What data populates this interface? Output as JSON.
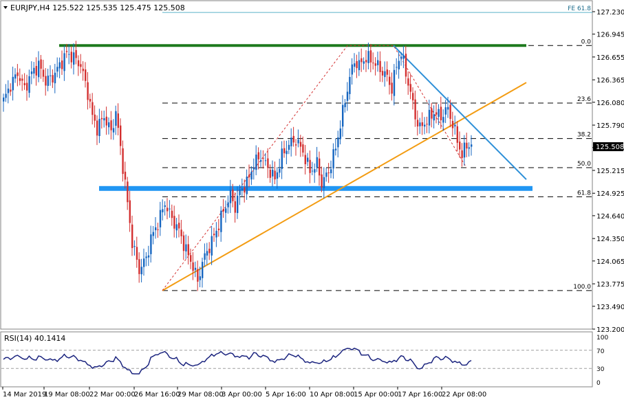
{
  "chart_data": [
    {
      "type": "candlestick",
      "title": "EURJPY,H4  125.522 125.535 125.475 125.508",
      "symbol": "EURJPY",
      "timeframe": "H4",
      "ohlc_last": {
        "open": 125.522,
        "high": 125.535,
        "low": 125.475,
        "close": 125.508
      },
      "current_price_label": "125.508",
      "y_ticks": [
        "127.230",
        "126.945",
        "126.655",
        "126.365",
        "126.080",
        "125.790",
        "125.505",
        "125.215",
        "124.925",
        "124.640",
        "124.350",
        "124.065",
        "123.775",
        "123.490",
        "123.200"
      ],
      "ylim": [
        123.2,
        127.33
      ],
      "x_tick_labels": [
        "14 Mar 2019",
        "19 Mar 08:00",
        "22 Mar 00:00",
        "26 Mar 16:00",
        "29 Mar 08:00",
        "3 Apr 00:00",
        "5 Apr 16:00",
        "10 Apr 08:00",
        "15 Apr 00:00",
        "17 Apr 16:00",
        "22 Apr 08:00"
      ],
      "fibonacci_levels": [
        {
          "label": "0.0",
          "price": 126.8
        },
        {
          "label": "23.6",
          "price": 126.07
        },
        {
          "label": "38.2",
          "price": 125.62
        },
        {
          "label": "50.0",
          "price": 125.25
        },
        {
          "label": "61.8",
          "price": 124.88
        },
        {
          "label": "100.0",
          "price": 123.69
        }
      ],
      "fib_extension_label": "FE 61.8",
      "fib_extension_price": 127.22,
      "resistance_level": 126.8,
      "support_zone": 124.99,
      "colors": {
        "bull": "#1565c0",
        "bear": "#d32f2f",
        "resistance": "#1e7a1e",
        "support": "#2196f3",
        "trendline_up": "#f39c12",
        "trendline_down": "#2e90d8",
        "fe_line": "#5ab0c8"
      }
    },
    {
      "type": "line",
      "title": "RSI(14) 40.1414",
      "indicator": "RSI(14)",
      "last_value": "40.1414",
      "y_ticks": [
        "100",
        "70",
        "30",
        "0"
      ],
      "ylim": [
        0,
        100
      ],
      "color": "#1a237e"
    }
  ]
}
